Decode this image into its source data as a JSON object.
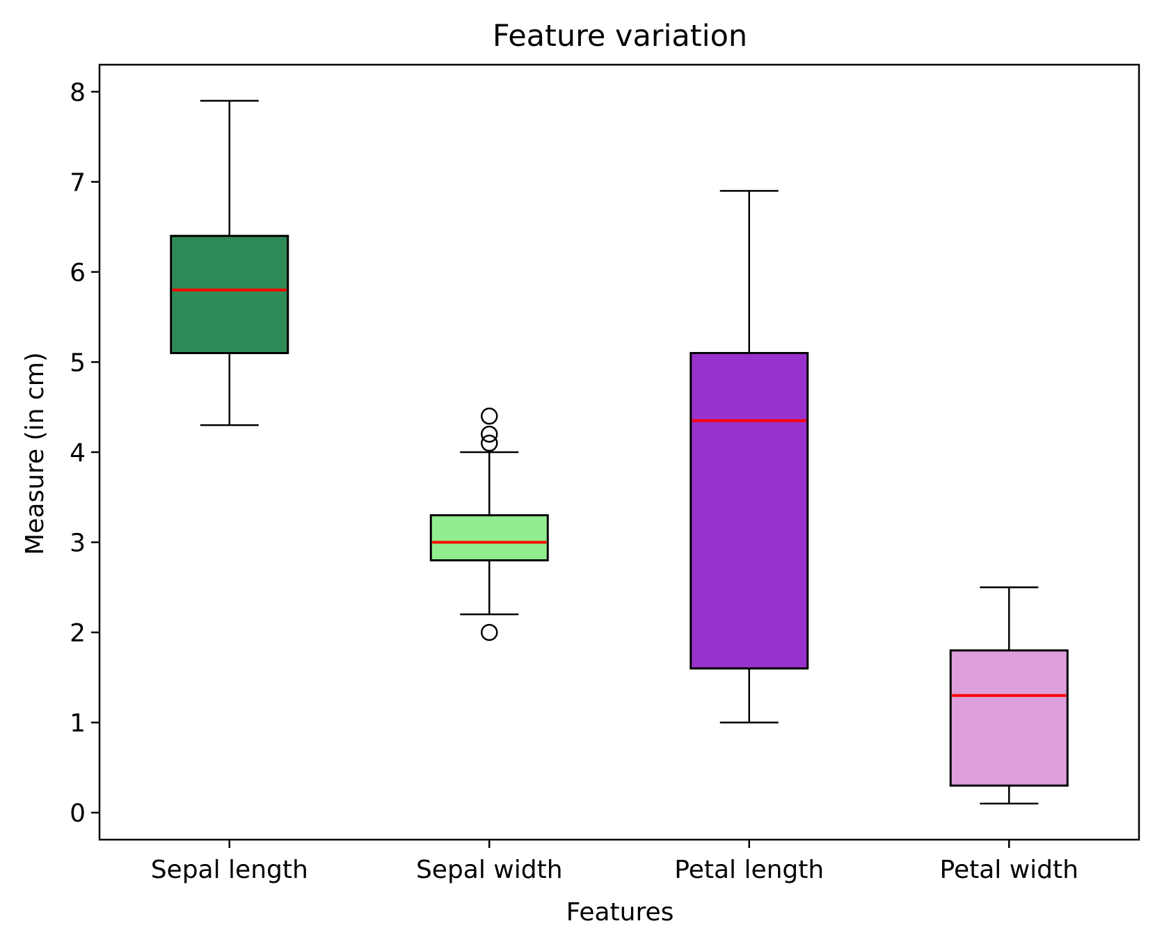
{
  "chart_data": {
    "type": "box",
    "title": "Feature variation",
    "xlabel": "Features",
    "ylabel": "Measure (in cm)",
    "ylim": [
      -0.3,
      8.3
    ],
    "yticks": [
      "0",
      "1",
      "2",
      "3",
      "4",
      "5",
      "6",
      "7",
      "8"
    ],
    "categories": [
      "Sepal length",
      "Sepal width",
      "Petal length",
      "Petal width"
    ],
    "boxes": [
      {
        "category": "Sepal length",
        "whisker_low": 4.3,
        "q1": 5.1,
        "median": 5.8,
        "q3": 6.4,
        "whisker_high": 7.9,
        "outliers": [],
        "color": "#2e8b57"
      },
      {
        "category": "Sepal width",
        "whisker_low": 2.2,
        "q1": 2.8,
        "median": 3.0,
        "q3": 3.3,
        "whisker_high": 4.0,
        "outliers": [
          2.0,
          4.1,
          4.2,
          4.4
        ],
        "color": "#90ee90"
      },
      {
        "category": "Petal length",
        "whisker_low": 1.0,
        "q1": 1.6,
        "median": 4.35,
        "q3": 5.1,
        "whisker_high": 6.9,
        "outliers": [],
        "color": "#9932cc"
      },
      {
        "category": "Petal width",
        "whisker_low": 0.1,
        "q1": 0.3,
        "median": 1.3,
        "q3": 1.8,
        "whisker_high": 2.5,
        "outliers": [],
        "color": "#dda0dd"
      }
    ],
    "median_color": "#ff0000",
    "grid": false,
    "legend": "none"
  }
}
